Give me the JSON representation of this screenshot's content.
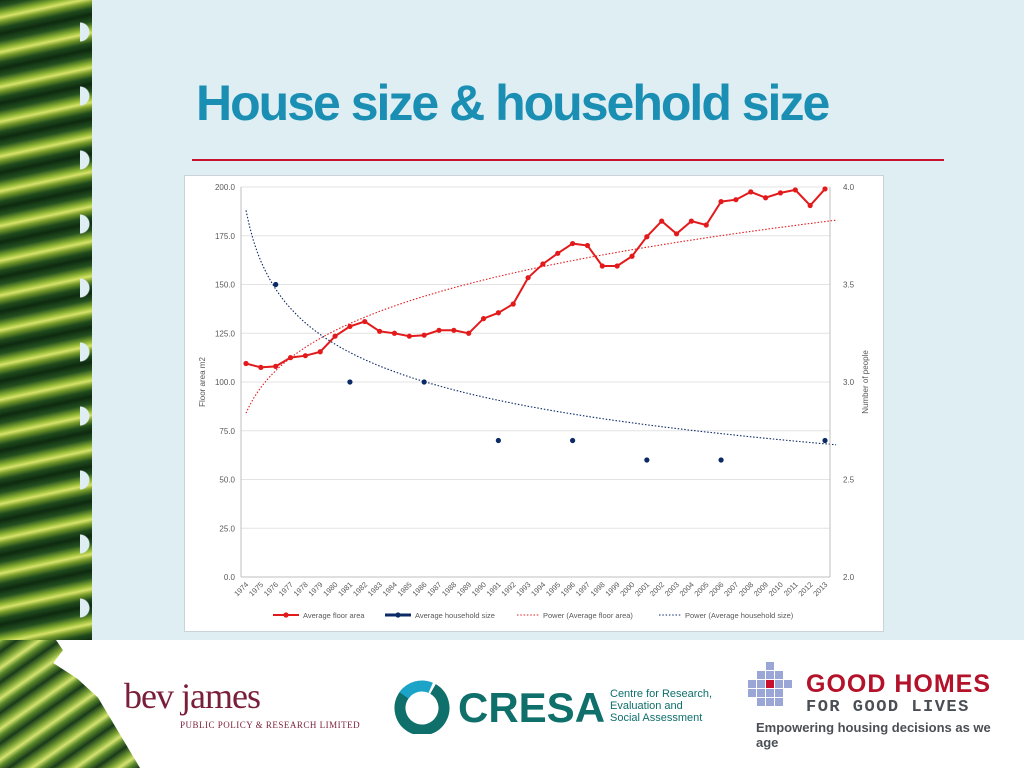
{
  "slide": {
    "title": "House size & household size"
  },
  "logos": {
    "bev_name": "bev james",
    "bev_sub": "PUBLIC POLICY & RESEARCH LIMITED",
    "cresa_name": "CRESA",
    "cresa_tag_1": "Centre for Research,",
    "cresa_tag_2": "Evaluation and",
    "cresa_tag_3": "Social Assessment",
    "gh_line1": "GOOD HOMES",
    "gh_line2": "FOR GOOD LIVES",
    "gh_tagline": "Empowering housing decisions as we age"
  },
  "chart_data": {
    "type": "line",
    "title": "",
    "ylabel": "Floor area m2",
    "y2label": "Number of people",
    "ylim": [
      0,
      200
    ],
    "y2lim": [
      2.0,
      4.0
    ],
    "yticks": [
      "0.0",
      "25.0",
      "50.0",
      "75.0",
      "100.0",
      "125.0",
      "150.0",
      "175.0",
      "200.0"
    ],
    "y2ticks": [
      "2.0",
      "2.5",
      "3.0",
      "3.5",
      "4.0"
    ],
    "categories": [
      "1974",
      "1975",
      "1976",
      "1977",
      "1978",
      "1979",
      "1980",
      "1981",
      "1982",
      "1983",
      "1984",
      "1985",
      "1986",
      "1987",
      "1988",
      "1989",
      "1990",
      "1991",
      "1992",
      "1993",
      "1994",
      "1995",
      "1996",
      "1997",
      "1998",
      "1999",
      "2000",
      "2001",
      "2002",
      "2003",
      "2004",
      "2005",
      "2006",
      "2007",
      "2008",
      "2009",
      "2010",
      "2011",
      "2012",
      "2013"
    ],
    "series": [
      {
        "name": "Average floor area",
        "axis": "left",
        "color": "#e31a1c",
        "values": [
          109.5,
          107.5,
          108,
          112.5,
          113.5,
          115.5,
          123.5,
          128.5,
          131,
          126,
          125,
          123.5,
          124,
          126.5,
          126.5,
          125,
          132.5,
          135.5,
          140,
          153.5,
          160.5,
          166,
          171,
          170,
          159.5,
          159.5,
          164.5,
          174.5,
          182.5,
          176,
          182.5,
          180.5,
          192.5,
          193.5,
          197.5,
          194.5,
          197,
          198.5,
          190.5,
          199
        ]
      },
      {
        "name": "Average household size",
        "axis": "right",
        "color": "#0b2a66",
        "points": [
          [
            "1976",
            3.5
          ],
          [
            "1981",
            3.0
          ],
          [
            "1986",
            3.0
          ],
          [
            "1991",
            2.7
          ],
          [
            "1996",
            2.7
          ],
          [
            "2001",
            2.6
          ],
          [
            "2006",
            2.6
          ],
          [
            "2013",
            2.7
          ]
        ]
      }
    ],
    "trendlines": [
      {
        "name": "Power (Average floor area)",
        "axis": "left",
        "color": "#e31a1c",
        "style": "dotted",
        "coef": 84,
        "exponent": 0.21
      },
      {
        "name": "Power (Average household size)",
        "axis": "right",
        "color": "#0b2a66",
        "style": "dotted",
        "coef": 3.88,
        "exponent": -0.1
      },
      {
        "name": "",
        "axis": "none",
        "color": "",
        "style": "",
        "coef": 0,
        "exponent": 0
      }
    ],
    "legend": [
      "Average floor area",
      "Average household size",
      "Power (Average floor area)",
      "Power (Average household size)"
    ],
    "legend_position": "bottom",
    "grid": true
  }
}
